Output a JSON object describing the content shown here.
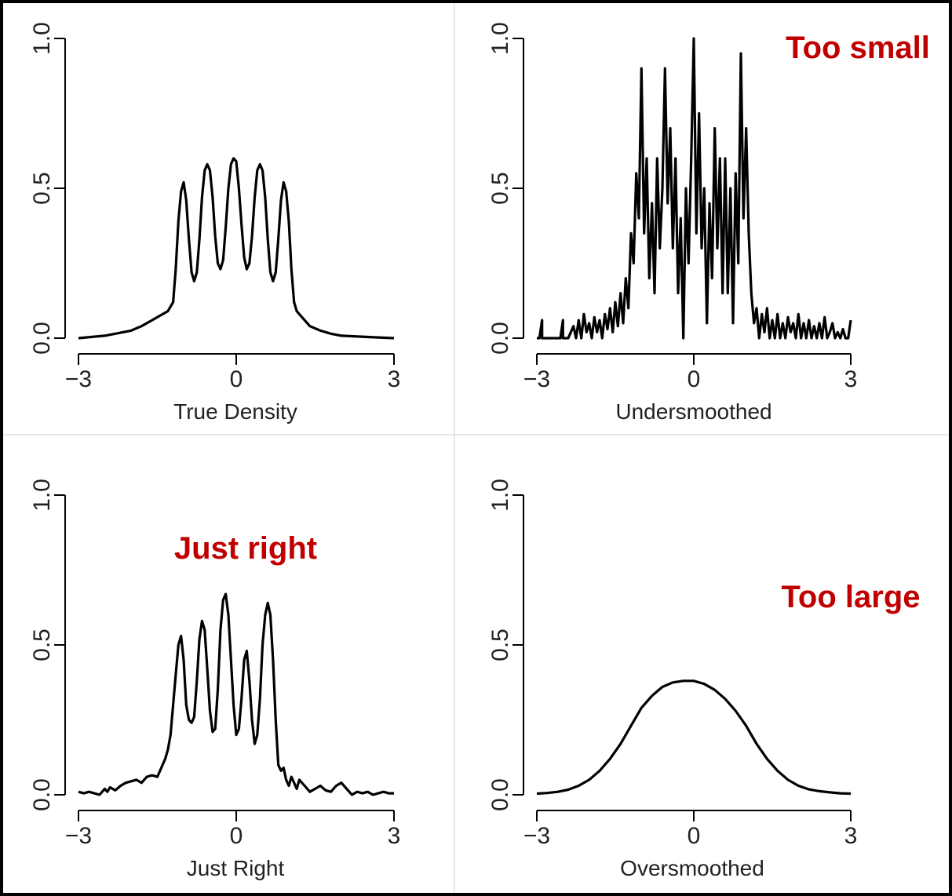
{
  "chart_data": [
    {
      "type": "line",
      "xlabel": "True Density",
      "xlim": [
        -3,
        3
      ],
      "ylim": [
        0,
        1
      ],
      "xticks": [
        "-3",
        "0",
        "3"
      ],
      "yticks": [
        "0.0",
        "0.5",
        "1.0"
      ],
      "annotation": "",
      "series": [
        {
          "x": [
            -3.0,
            -2.5,
            -2.0,
            -1.8,
            -1.6,
            -1.4,
            -1.3,
            -1.2,
            -1.15,
            -1.1,
            -1.05,
            -1.0,
            -0.95,
            -0.9,
            -0.85,
            -0.8,
            -0.75,
            -0.7,
            -0.65,
            -0.6,
            -0.55,
            -0.5,
            -0.45,
            -0.4,
            -0.35,
            -0.3,
            -0.25,
            -0.2,
            -0.15,
            -0.1,
            -0.05,
            0.0,
            0.05,
            0.1,
            0.15,
            0.2,
            0.25,
            0.3,
            0.35,
            0.4,
            0.45,
            0.5,
            0.55,
            0.6,
            0.65,
            0.7,
            0.75,
            0.8,
            0.85,
            0.9,
            0.95,
            1.0,
            1.05,
            1.1,
            1.15,
            1.2,
            1.3,
            1.4,
            1.6,
            1.8,
            2.0,
            2.5,
            3.0
          ],
          "y": [
            0.0,
            0.008,
            0.025,
            0.04,
            0.06,
            0.08,
            0.09,
            0.12,
            0.23,
            0.39,
            0.49,
            0.52,
            0.46,
            0.33,
            0.22,
            0.19,
            0.22,
            0.33,
            0.47,
            0.56,
            0.58,
            0.56,
            0.47,
            0.34,
            0.25,
            0.23,
            0.26,
            0.37,
            0.5,
            0.58,
            0.6,
            0.59,
            0.5,
            0.38,
            0.27,
            0.23,
            0.25,
            0.34,
            0.47,
            0.56,
            0.58,
            0.56,
            0.47,
            0.33,
            0.22,
            0.19,
            0.22,
            0.33,
            0.46,
            0.52,
            0.49,
            0.39,
            0.23,
            0.12,
            0.09,
            0.08,
            0.06,
            0.04,
            0.025,
            0.015,
            0.008,
            0.004,
            0.0
          ]
        }
      ]
    },
    {
      "type": "line",
      "xlabel": "Undersmoothed",
      "xlim": [
        -3,
        3
      ],
      "ylim": [
        0,
        1
      ],
      "xticks": [
        "-3",
        "0",
        "3"
      ],
      "yticks": [
        "0.0",
        "0.5",
        "1.0"
      ],
      "annotation": "Too small",
      "series": [
        {
          "x": [
            -3.0,
            -2.95,
            -2.9,
            -2.9,
            -2.8,
            -2.7,
            -2.55,
            -2.5,
            -2.5,
            -2.45,
            -2.4,
            -2.3,
            -2.25,
            -2.2,
            -2.15,
            -2.1,
            -2.05,
            -2.0,
            -1.95,
            -1.9,
            -1.85,
            -1.8,
            -1.75,
            -1.7,
            -1.65,
            -1.6,
            -1.55,
            -1.5,
            -1.45,
            -1.4,
            -1.35,
            -1.3,
            -1.25,
            -1.2,
            -1.15,
            -1.1,
            -1.05,
            -1.0,
            -0.95,
            -0.9,
            -0.85,
            -0.8,
            -0.75,
            -0.7,
            -0.65,
            -0.6,
            -0.55,
            -0.5,
            -0.45,
            -0.4,
            -0.35,
            -0.3,
            -0.25,
            -0.2,
            -0.15,
            -0.1,
            -0.05,
            0.0,
            0.05,
            0.1,
            0.15,
            0.2,
            0.25,
            0.3,
            0.35,
            0.4,
            0.45,
            0.5,
            0.55,
            0.6,
            0.65,
            0.7,
            0.75,
            0.8,
            0.85,
            0.9,
            0.95,
            1.0,
            1.05,
            1.1,
            1.15,
            1.2,
            1.25,
            1.3,
            1.35,
            1.4,
            1.45,
            1.5,
            1.55,
            1.6,
            1.65,
            1.7,
            1.75,
            1.8,
            1.85,
            1.9,
            1.95,
            2.0,
            2.05,
            2.1,
            2.15,
            2.2,
            2.25,
            2.3,
            2.35,
            2.4,
            2.45,
            2.5,
            2.55,
            2.6,
            2.65,
            2.7,
            2.75,
            2.8,
            2.85,
            2.9,
            2.95,
            3.0
          ],
          "y": [
            0.0,
            0.0,
            0.06,
            0.0,
            0.0,
            0.0,
            0.0,
            0.06,
            0.0,
            0.0,
            0.0,
            0.04,
            0.0,
            0.06,
            0.0,
            0.08,
            0.02,
            0.05,
            0.0,
            0.07,
            0.02,
            0.06,
            0.0,
            0.08,
            0.03,
            0.1,
            0.02,
            0.12,
            0.04,
            0.15,
            0.05,
            0.2,
            0.1,
            0.35,
            0.25,
            0.55,
            0.4,
            0.9,
            0.35,
            0.6,
            0.2,
            0.45,
            0.15,
            0.6,
            0.3,
            0.5,
            0.9,
            0.45,
            0.7,
            0.3,
            0.6,
            0.15,
            0.4,
            0.0,
            0.5,
            0.25,
            0.6,
            1.0,
            0.35,
            0.75,
            0.3,
            0.5,
            0.05,
            0.45,
            0.2,
            0.7,
            0.3,
            0.6,
            0.15,
            0.6,
            0.15,
            0.5,
            0.05,
            0.55,
            0.25,
            0.95,
            0.4,
            0.7,
            0.35,
            0.15,
            0.05,
            0.1,
            0.0,
            0.08,
            0.02,
            0.1,
            0.0,
            0.06,
            0.0,
            0.08,
            0.0,
            0.05,
            0.0,
            0.07,
            0.02,
            0.05,
            0.0,
            0.08,
            0.0,
            0.05,
            0.0,
            0.06,
            0.0,
            0.04,
            0.0,
            0.05,
            0.0,
            0.07,
            0.0,
            0.02,
            0.05,
            0.0,
            0.02,
            0.0,
            0.03,
            0.0,
            0.0,
            0.06
          ]
        }
      ]
    },
    {
      "type": "line",
      "xlabel": "Just Right",
      "xlim": [
        -3,
        3
      ],
      "ylim": [
        0,
        1
      ],
      "xticks": [
        "-3",
        "0",
        "3"
      ],
      "yticks": [
        "0.0",
        "0.5",
        "1.0"
      ],
      "annotation": "Just right",
      "series": [
        {
          "x": [
            -3.0,
            -2.9,
            -2.8,
            -2.7,
            -2.6,
            -2.5,
            -2.45,
            -2.4,
            -2.3,
            -2.2,
            -2.1,
            -2.0,
            -1.9,
            -1.8,
            -1.7,
            -1.6,
            -1.5,
            -1.45,
            -1.4,
            -1.35,
            -1.3,
            -1.25,
            -1.2,
            -1.15,
            -1.1,
            -1.05,
            -1.0,
            -0.95,
            -0.9,
            -0.85,
            -0.8,
            -0.75,
            -0.7,
            -0.65,
            -0.6,
            -0.55,
            -0.5,
            -0.45,
            -0.4,
            -0.35,
            -0.3,
            -0.25,
            -0.2,
            -0.15,
            -0.1,
            -0.05,
            0.0,
            0.05,
            0.1,
            0.15,
            0.2,
            0.25,
            0.3,
            0.35,
            0.4,
            0.45,
            0.5,
            0.55,
            0.6,
            0.65,
            0.7,
            0.75,
            0.8,
            0.85,
            0.9,
            0.95,
            1.0,
            1.05,
            1.1,
            1.15,
            1.2,
            1.3,
            1.4,
            1.5,
            1.6,
            1.7,
            1.8,
            1.9,
            2.0,
            2.1,
            2.2,
            2.3,
            2.4,
            2.5,
            2.6,
            2.7,
            2.8,
            2.9,
            3.0
          ],
          "y": [
            0.01,
            0.005,
            0.01,
            0.005,
            0.0,
            0.02,
            0.01,
            0.025,
            0.015,
            0.03,
            0.04,
            0.045,
            0.05,
            0.04,
            0.06,
            0.065,
            0.06,
            0.08,
            0.1,
            0.12,
            0.15,
            0.2,
            0.3,
            0.4,
            0.5,
            0.53,
            0.45,
            0.3,
            0.25,
            0.24,
            0.26,
            0.38,
            0.52,
            0.58,
            0.55,
            0.42,
            0.28,
            0.21,
            0.22,
            0.35,
            0.55,
            0.65,
            0.67,
            0.6,
            0.45,
            0.3,
            0.2,
            0.22,
            0.32,
            0.45,
            0.48,
            0.38,
            0.25,
            0.17,
            0.2,
            0.32,
            0.5,
            0.6,
            0.64,
            0.6,
            0.45,
            0.25,
            0.1,
            0.08,
            0.09,
            0.05,
            0.03,
            0.06,
            0.04,
            0.02,
            0.05,
            0.03,
            0.01,
            0.02,
            0.03,
            0.015,
            0.01,
            0.03,
            0.04,
            0.02,
            0.0,
            0.01,
            0.005,
            0.01,
            0.0,
            0.005,
            0.01,
            0.005,
            0.005
          ]
        }
      ]
    },
    {
      "type": "line",
      "xlabel": "Oversmoothed",
      "xlim": [
        -3,
        3
      ],
      "ylim": [
        0,
        1
      ],
      "xticks": [
        "-3",
        "0",
        "3"
      ],
      "yticks": [
        "0.0",
        "0.5",
        "1.0"
      ],
      "annotation": "Too large",
      "series": [
        {
          "x": [
            -3.0,
            -2.8,
            -2.6,
            -2.4,
            -2.2,
            -2.0,
            -1.8,
            -1.6,
            -1.4,
            -1.2,
            -1.0,
            -0.8,
            -0.6,
            -0.4,
            -0.2,
            0.0,
            0.2,
            0.4,
            0.6,
            0.8,
            1.0,
            1.2,
            1.4,
            1.6,
            1.8,
            2.0,
            2.2,
            2.4,
            2.6,
            2.8,
            3.0
          ],
          "y": [
            0.004,
            0.006,
            0.01,
            0.017,
            0.03,
            0.05,
            0.08,
            0.12,
            0.17,
            0.23,
            0.29,
            0.33,
            0.36,
            0.375,
            0.38,
            0.38,
            0.37,
            0.35,
            0.32,
            0.28,
            0.23,
            0.17,
            0.12,
            0.08,
            0.05,
            0.03,
            0.018,
            0.012,
            0.008,
            0.005,
            0.004
          ]
        }
      ]
    }
  ]
}
